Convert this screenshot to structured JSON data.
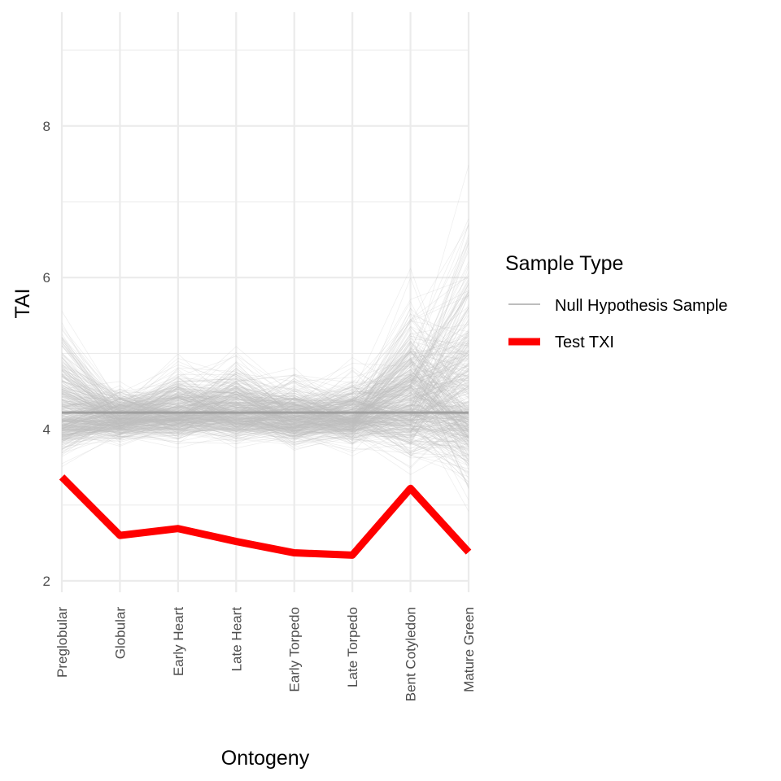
{
  "chart_data": {
    "type": "line",
    "xlabel": "Ontogeny",
    "ylabel": "TAI",
    "categories": [
      "Preglobular",
      "Globular",
      "Early Heart",
      "Late Heart",
      "Early Torpedo",
      "Late Torpedo",
      "Bent Cotyledon",
      "Mature Green"
    ],
    "yticks": [
      2,
      4,
      6,
      8
    ],
    "ylim": [
      1.85,
      9.5
    ],
    "grid": true,
    "legend": {
      "title": "Sample Type",
      "placement": "right",
      "entries": [
        {
          "label": "Null Hypothesis Sample",
          "color": "#bdbdbd"
        },
        {
          "label": "Test TXI",
          "color": "#ff0000"
        }
      ]
    },
    "series": [
      {
        "name": "Test TXI",
        "color": "#ff0000",
        "values": [
          3.37,
          2.6,
          2.69,
          2.52,
          2.37,
          2.34,
          3.22,
          2.38
        ]
      }
    ],
    "null_reference_level": 4.22,
    "null_band": {
      "upper": [
        6.3,
        4.85,
        5.3,
        5.35,
        5.05,
        5.15,
        6.7,
        8.6
      ],
      "lower": [
        3.3,
        3.65,
        3.6,
        3.6,
        3.55,
        3.55,
        3.1,
        2.4
      ],
      "center": [
        4.15,
        4.15,
        4.2,
        4.2,
        4.15,
        4.15,
        4.3,
        4.3
      ]
    },
    "colors": {
      "null_sample": "#bdbdbd",
      "null_mean": "#9e9e9e",
      "test": "#ff0000",
      "grid": "#ebebeb"
    }
  }
}
